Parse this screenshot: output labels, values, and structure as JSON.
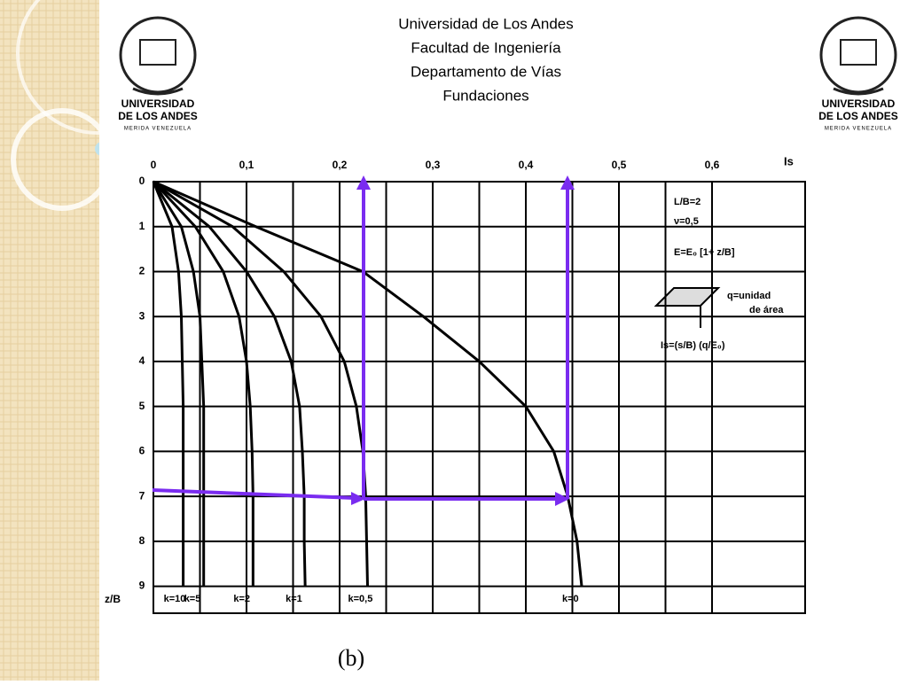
{
  "header": {
    "lines": [
      "Universidad de Los Andes",
      "Facultad de Ingeniería",
      "Departamento de Vías",
      "Fundaciones"
    ]
  },
  "logo": {
    "lines": [
      "UNIVERSIDAD",
      "DE LOS ANDES",
      "MERIDA VENEZUELA"
    ]
  },
  "chart_data": {
    "type": "line",
    "x_label": "Is",
    "y_label": "z/B",
    "x": [
      0,
      1,
      2,
      3,
      4,
      5,
      6,
      7,
      8,
      9
    ],
    "series": [
      {
        "name": "k=10",
        "color": "#000000",
        "values": [
          0,
          0.02,
          0.027,
          0.03,
          0.031,
          0.032,
          0.032,
          0.032,
          0.032,
          0.032
        ]
      },
      {
        "name": "k=5",
        "color": "#000000",
        "values": [
          0,
          0.03,
          0.043,
          0.05,
          0.052,
          0.054,
          0.054,
          0.054,
          0.054,
          0.054
        ]
      },
      {
        "name": "k=2",
        "color": "#000000",
        "values": [
          0,
          0.045,
          0.075,
          0.092,
          0.1,
          0.104,
          0.106,
          0.107,
          0.107,
          0.107
        ]
      },
      {
        "name": "k=1",
        "color": "#000000",
        "values": [
          0,
          0.06,
          0.1,
          0.13,
          0.148,
          0.157,
          0.16,
          0.162,
          0.162,
          0.163
        ]
      },
      {
        "name": "k=0,5",
        "color": "#000000",
        "values": [
          0,
          0.085,
          0.14,
          0.18,
          0.205,
          0.218,
          0.225,
          0.228,
          0.229,
          0.23
        ]
      },
      {
        "name": "k=0",
        "color": "#000000",
        "values": [
          0,
          0.11,
          0.225,
          0.29,
          0.35,
          0.4,
          0.43,
          0.445,
          0.455,
          0.46
        ]
      }
    ],
    "xlim": [
      0,
      0.7
    ],
    "ylim": [
      0,
      9.6
    ],
    "xticks": [
      0,
      {
        "value": 0.1,
        "label": "0,1"
      },
      {
        "value": 0.2,
        "label": "0,2"
      },
      {
        "value": 0.3,
        "label": "0,3"
      },
      {
        "value": 0.4,
        "label": "0,4"
      },
      {
        "value": 0.5,
        "label": "0,5"
      },
      {
        "value": 0.6,
        "label": "0,6"
      }
    ],
    "yticks": [
      0,
      1,
      2,
      3,
      4,
      5,
      6,
      7,
      8,
      9
    ],
    "notes": [
      "L/B=2",
      "ν=0,5",
      "E=E₀ [1+ z/B]",
      "q=unidad",
      "de área",
      "Is=(s/B) (q/E₀)"
    ],
    "caption": "(b)"
  }
}
